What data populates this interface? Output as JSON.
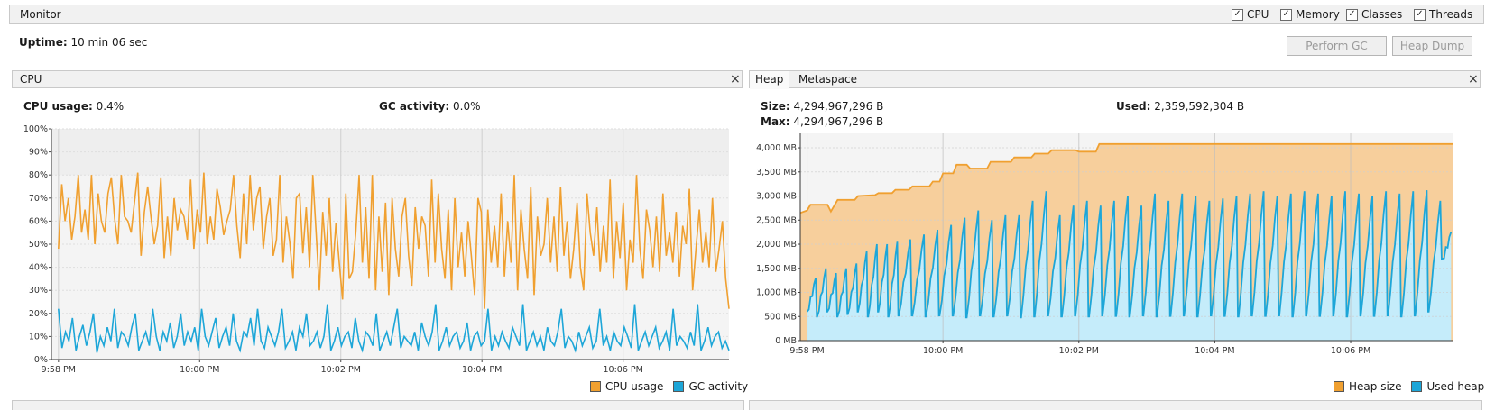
{
  "monitor": {
    "title": "Monitor",
    "checkboxes": [
      {
        "label": "CPU",
        "checked": true
      },
      {
        "label": "Memory",
        "checked": true
      },
      {
        "label": "Classes",
        "checked": true
      },
      {
        "label": "Threads",
        "checked": true
      }
    ],
    "uptime_label": "Uptime:",
    "uptime_value": "10 min 06 sec",
    "perform_gc": "Perform GC",
    "heap_dump": "Heap Dump"
  },
  "cpu_panel": {
    "title": "CPU",
    "close": "×",
    "cpu_usage_label": "CPU usage:",
    "cpu_usage_value": "0.4%",
    "gc_activity_label": "GC activity:",
    "gc_activity_value": "0.0%",
    "legend": [
      "CPU usage",
      "GC activity"
    ]
  },
  "memory_panel": {
    "tabs": [
      "Heap",
      "Metaspace"
    ],
    "close": "×",
    "size_label": "Size:",
    "size_value": "4,294,967,296 B",
    "used_label": "Used:",
    "used_value": "2,359,592,304 B",
    "max_label": "Max:",
    "max_value": "4,294,967,296 B",
    "legend": [
      "Heap size",
      "Used heap"
    ]
  },
  "colors": {
    "orange": "#f0a030",
    "orange_fill": "#f7cf9c",
    "blue": "#1da6d8",
    "blue_fill": "#c5ecfa",
    "grid": "#d0d0d0"
  },
  "chart_data": [
    {
      "type": "line",
      "title": "",
      "x_ticks": [
        "9:58 PM",
        "10:00 PM",
        "10:02 PM",
        "10:04 PM",
        "10:06 PM"
      ],
      "x_tick_minutes": [
        0,
        2,
        4,
        6,
        8
      ],
      "x_range_minutes": [
        -0.1,
        9.5
      ],
      "y_ticks": [
        "0%",
        "10%",
        "20%",
        "30%",
        "40%",
        "50%",
        "60%",
        "70%",
        "80%",
        "90%",
        "100%"
      ],
      "ylim": [
        0,
        100
      ],
      "series": [
        {
          "name": "CPU usage",
          "values": [
            48,
            76,
            60,
            70,
            52,
            62,
            80,
            55,
            65,
            52,
            80,
            50,
            72,
            60,
            55,
            72,
            79,
            61,
            50,
            80,
            62,
            60,
            55,
            68,
            81,
            45,
            64,
            75,
            62,
            50,
            58,
            79,
            44,
            62,
            45,
            70,
            56,
            65,
            62,
            52,
            78,
            48,
            65,
            55,
            81,
            50,
            62,
            52,
            74,
            66,
            54,
            60,
            65,
            80,
            58,
            44,
            72,
            50,
            80,
            56,
            70,
            75,
            48,
            62,
            70,
            45,
            52,
            80,
            42,
            62,
            51,
            35,
            70,
            72,
            46,
            66,
            40,
            80,
            55,
            30,
            64,
            45,
            70,
            38,
            59,
            42,
            26,
            72,
            35,
            38,
            55,
            80,
            42,
            66,
            35,
            80,
            30,
            62,
            38,
            68,
            28,
            70,
            48,
            36,
            62,
            70,
            45,
            32,
            66,
            48,
            62,
            58,
            36,
            78,
            42,
            72,
            48,
            35,
            65,
            30,
            70,
            40,
            55,
            36,
            60,
            45,
            28,
            70,
            64,
            22,
            65,
            42,
            58,
            40,
            72,
            36,
            60,
            42,
            80,
            30,
            65,
            48,
            35,
            75,
            28,
            62,
            45,
            50,
            70,
            42,
            62,
            38,
            75,
            45,
            60,
            35,
            48,
            68,
            40,
            30,
            72,
            55,
            45,
            66,
            38,
            58,
            42,
            78,
            35,
            60,
            44,
            68,
            30,
            52,
            42,
            80,
            48,
            35,
            65,
            56,
            40,
            62,
            38,
            72,
            45,
            55,
            42,
            64,
            36,
            58,
            50,
            74,
            30,
            48,
            65,
            42,
            55,
            40,
            70,
            38,
            48,
            60,
            35,
            22
          ],
          "x_start_minutes": 0,
          "x_end_minutes": 9.5
        },
        {
          "name": "GC activity",
          "values": [
            22,
            5,
            12,
            8,
            18,
            4,
            10,
            15,
            6,
            12,
            20,
            3,
            10,
            6,
            14,
            8,
            22,
            5,
            12,
            10,
            6,
            14,
            20,
            4,
            8,
            12,
            6,
            22,
            10,
            4,
            12,
            8,
            16,
            5,
            10,
            20,
            6,
            12,
            8,
            14,
            4,
            22,
            10,
            6,
            12,
            18,
            5,
            10,
            14,
            6,
            20,
            8,
            4,
            12,
            10,
            18,
            6,
            22,
            8,
            5,
            14,
            10,
            6,
            12,
            22,
            5,
            8,
            12,
            4,
            14,
            10,
            20,
            6,
            8,
            12,
            5,
            10,
            24,
            4,
            8,
            14,
            6,
            10,
            12,
            5,
            18,
            8,
            4,
            12,
            10,
            6,
            20,
            4,
            8,
            12,
            6,
            14,
            22,
            5,
            10,
            8,
            6,
            12,
            4,
            16,
            10,
            6,
            12,
            24,
            4,
            8,
            14,
            6,
            10,
            12,
            5,
            8,
            16,
            4,
            10,
            12,
            6,
            8,
            22,
            4,
            10,
            6,
            12,
            8,
            5,
            14,
            10,
            6,
            24,
            4,
            8,
            12,
            6,
            10,
            4,
            14,
            8,
            6,
            12,
            22,
            5,
            10,
            8,
            4,
            12,
            6,
            10,
            14,
            5,
            8,
            22,
            6,
            10,
            4,
            12,
            8,
            6,
            14,
            10,
            5,
            24,
            4,
            8,
            12,
            6,
            10,
            14,
            5,
            8,
            12,
            4,
            22,
            6,
            10,
            8,
            5,
            12,
            6,
            24,
            4,
            8,
            14,
            6,
            10,
            12,
            5,
            8,
            4
          ]
        }
      ]
    },
    {
      "type": "area",
      "title": "",
      "x_ticks": [
        "9:58 PM",
        "10:00 PM",
        "10:02 PM",
        "10:04 PM",
        "10:06 PM"
      ],
      "x_tick_minutes": [
        0,
        2,
        4,
        6,
        8
      ],
      "x_range_minutes": [
        -0.1,
        9.5
      ],
      "y_ticks": [
        "0 MB",
        "500 MB",
        "1,000 MB",
        "1,500 MB",
        "2,000 MB",
        "2,500 MB",
        "3,000 MB",
        "3,500 MB",
        "4,000 MB"
      ],
      "ylim": [
        0,
        4300
      ],
      "series": [
        {
          "name": "Heap size",
          "points": [
            [
              -0.1,
              2650
            ],
            [
              0.0,
              2700
            ],
            [
              0.05,
              2820
            ],
            [
              0.3,
              2820
            ],
            [
              0.35,
              2680
            ],
            [
              0.45,
              2920
            ],
            [
              0.7,
              2920
            ],
            [
              0.75,
              3000
            ],
            [
              1.0,
              3020
            ],
            [
              1.05,
              3060
            ],
            [
              1.25,
              3060
            ],
            [
              1.3,
              3130
            ],
            [
              1.5,
              3130
            ],
            [
              1.55,
              3200
            ],
            [
              1.8,
              3200
            ],
            [
              1.85,
              3300
            ],
            [
              1.95,
              3300
            ],
            [
              2.0,
              3470
            ],
            [
              2.15,
              3470
            ],
            [
              2.2,
              3650
            ],
            [
              2.35,
              3650
            ],
            [
              2.4,
              3570
            ],
            [
              2.65,
              3570
            ],
            [
              2.7,
              3710
            ],
            [
              3.0,
              3710
            ],
            [
              3.05,
              3800
            ],
            [
              3.3,
              3800
            ],
            [
              3.35,
              3880
            ],
            [
              3.55,
              3880
            ],
            [
              3.6,
              3950
            ],
            [
              3.95,
              3950
            ],
            [
              4.0,
              3920
            ],
            [
              4.25,
              3920
            ],
            [
              4.3,
              4080
            ],
            [
              9.5,
              4080
            ]
          ]
        },
        {
          "name": "Used heap",
          "cycles": [
            [
              0.0,
              1300,
              600
            ],
            [
              0.15,
              1500,
              500
            ],
            [
              0.3,
              1400,
              600
            ],
            [
              0.45,
              1500,
              500
            ],
            [
              0.6,
              1600,
              550
            ],
            [
              0.75,
              1850,
              600
            ],
            [
              0.9,
              2000,
              500
            ],
            [
              1.05,
              2000,
              600
            ],
            [
              1.2,
              2050,
              500
            ],
            [
              1.35,
              2100,
              520
            ],
            [
              1.55,
              2200,
              520
            ],
            [
              1.75,
              2300,
              500
            ],
            [
              1.95,
              2400,
              520
            ],
            [
              2.15,
              2550,
              520
            ],
            [
              2.35,
              2700,
              480
            ],
            [
              2.55,
              2500,
              520
            ],
            [
              2.75,
              2600,
              500
            ],
            [
              2.95,
              2600,
              520
            ],
            [
              3.15,
              2900,
              480
            ],
            [
              3.35,
              3100,
              500
            ],
            [
              3.55,
              2600,
              520
            ],
            [
              3.75,
              2800,
              500
            ],
            [
              3.95,
              2900,
              520
            ],
            [
              4.15,
              2800,
              500
            ],
            [
              4.35,
              2900,
              520
            ],
            [
              4.55,
              3000,
              510
            ],
            [
              4.75,
              2800,
              500
            ],
            [
              4.95,
              3050,
              520
            ],
            [
              5.15,
              2900,
              500
            ],
            [
              5.35,
              3050,
              510
            ],
            [
              5.55,
              3000,
              520
            ],
            [
              5.75,
              2900,
              500
            ],
            [
              5.95,
              2950,
              520
            ],
            [
              6.15,
              3000,
              510
            ],
            [
              6.35,
              3050,
              500
            ],
            [
              6.55,
              3100,
              520
            ],
            [
              6.75,
              3000,
              510
            ],
            [
              6.95,
              3050,
              520
            ],
            [
              7.15,
              3100,
              500
            ],
            [
              7.35,
              3050,
              520
            ],
            [
              7.55,
              3000,
              510
            ],
            [
              7.75,
              3100,
              520
            ],
            [
              7.95,
              3050,
              500
            ],
            [
              8.15,
              3000,
              520
            ],
            [
              8.35,
              3100,
              510
            ],
            [
              8.55,
              3050,
              520
            ],
            [
              8.75,
              3100,
              500
            ],
            [
              8.95,
              3120,
              520
            ],
            [
              9.15,
              2900,
              600
            ],
            [
              9.35,
              2250,
              1700
            ]
          ]
        }
      ]
    }
  ]
}
